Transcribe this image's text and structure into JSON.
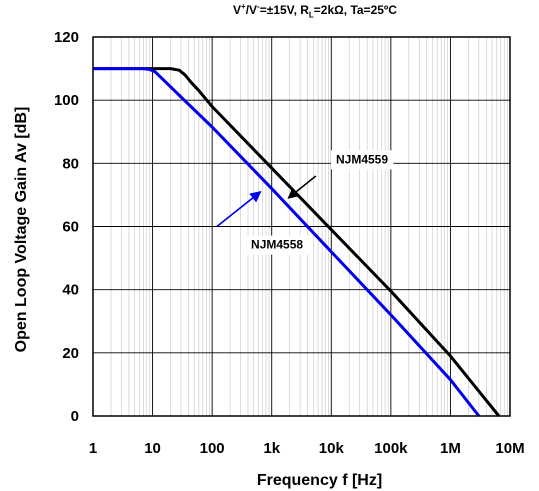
{
  "chart_data": {
    "type": "line",
    "title_parts": {
      "v": "V",
      "plus": "+",
      "slash_v": "/V",
      "minus": "-",
      "rest1": "=±15V, R",
      "L": "L",
      "rest2": "=2kΩ, Ta=25ºC"
    },
    "xlabel": "Frequency f [Hz]",
    "ylabel": "Open Loop Voltage Gain  Av [dB]",
    "x_scale": "log",
    "xlim": [
      1,
      10000000
    ],
    "ylim": [
      0,
      120
    ],
    "x_ticks": [
      {
        "value": 1,
        "label": "1"
      },
      {
        "value": 10,
        "label": "10"
      },
      {
        "value": 100,
        "label": "100"
      },
      {
        "value": 1000,
        "label": "1k"
      },
      {
        "value": 10000,
        "label": "10k"
      },
      {
        "value": 100000,
        "label": "100k"
      },
      {
        "value": 1000000,
        "label": "1M"
      },
      {
        "value": 10000000,
        "label": "10M"
      }
    ],
    "y_ticks": [
      {
        "value": 0,
        "label": "0"
      },
      {
        "value": 20,
        "label": "20"
      },
      {
        "value": 40,
        "label": "40"
      },
      {
        "value": 60,
        "label": "60"
      },
      {
        "value": 80,
        "label": "80"
      },
      {
        "value": 100,
        "label": "100"
      },
      {
        "value": 120,
        "label": "120"
      }
    ],
    "grid": true,
    "series": [
      {
        "name": "NJM4559",
        "color": "#000000",
        "points": [
          [
            1,
            110
          ],
          [
            12,
            110
          ],
          [
            20,
            110
          ],
          [
            28,
            109.5
          ],
          [
            35,
            108
          ],
          [
            45,
            105.5
          ],
          [
            60,
            103
          ],
          [
            100,
            98
          ],
          [
            1000,
            78.5
          ],
          [
            10000,
            59
          ],
          [
            100000,
            39.5
          ],
          [
            1000000,
            19
          ],
          [
            6500000,
            0
          ]
        ]
      },
      {
        "name": "NJM4558",
        "color": "#0000ee",
        "points": [
          [
            1,
            110
          ],
          [
            7,
            110
          ],
          [
            9,
            109.7
          ],
          [
            11,
            109
          ],
          [
            15,
            106.5
          ],
          [
            30,
            101
          ],
          [
            100,
            91.5
          ],
          [
            1000,
            72
          ],
          [
            10000,
            52
          ],
          [
            100000,
            32
          ],
          [
            1000000,
            11.5
          ],
          [
            3000000,
            0
          ]
        ]
      }
    ],
    "annotations": [
      {
        "text": "NJM4559",
        "series": "NJM4559",
        "label_at": [
          12000,
          80
        ],
        "arrow_tail": [
          5500,
          76
        ],
        "arrow_head": [
          1900,
          69
        ],
        "color": "#000000"
      },
      {
        "text": "NJM4558",
        "series": "NJM4558",
        "label_at": [
          450,
          53
        ],
        "arrow_tail": [
          120,
          60
        ],
        "arrow_head": [
          650,
          71
        ],
        "color": "#0000ee"
      }
    ]
  }
}
